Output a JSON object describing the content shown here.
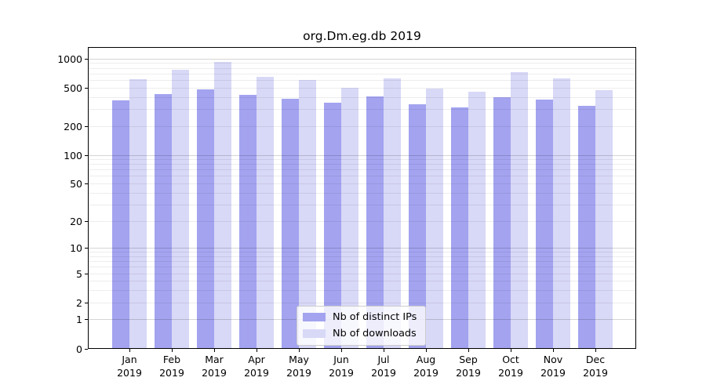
{
  "chart_data": {
    "type": "bar",
    "title": "org.Dm.eg.db 2019",
    "xlabel": "",
    "ylabel": "",
    "scale": "log10(1+y)",
    "grid": true,
    "legend_position": "lower center",
    "categories": [
      "Jan",
      "Feb",
      "Mar",
      "Apr",
      "May",
      "Jun",
      "Jul",
      "Aug",
      "Sep",
      "Oct",
      "Nov",
      "Dec"
    ],
    "category_year": "2019",
    "series": [
      {
        "name": "Nb of distinct IPs",
        "color": "#a3a3f0",
        "values": [
          370,
          430,
          480,
          425,
          390,
          350,
          410,
          337,
          313,
          405,
          377,
          325
        ]
      },
      {
        "name": "Nb of downloads",
        "color": "#d8d8f7",
        "values": [
          620,
          770,
          940,
          650,
          605,
          500,
          630,
          490,
          460,
          735,
          635,
          475
        ]
      }
    ],
    "y_ticks": [
      0,
      1,
      2,
      5,
      10,
      20,
      50,
      100,
      200,
      500,
      1000
    ],
    "ylim": [
      0,
      1330
    ],
    "major_grid_values": [
      1,
      10,
      100,
      1000
    ]
  }
}
